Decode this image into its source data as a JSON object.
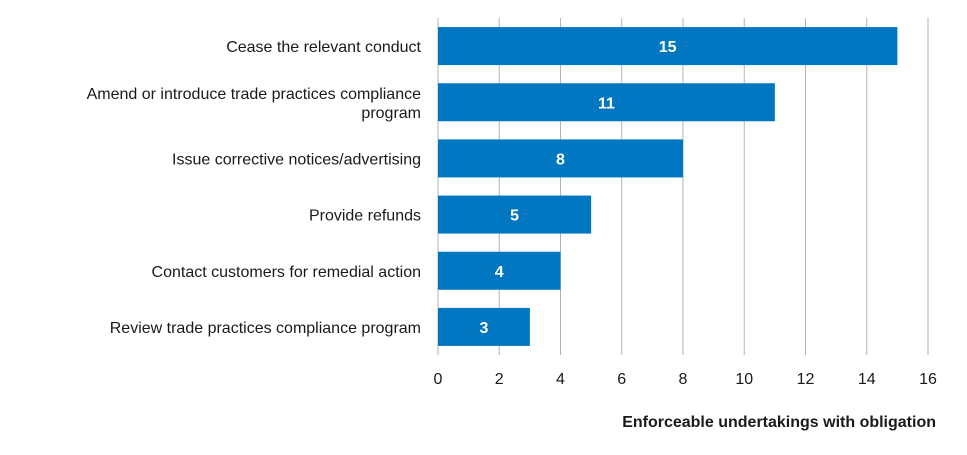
{
  "chart_data": {
    "type": "bar",
    "orientation": "horizontal",
    "categories": [
      [
        "Cease the relevant conduct"
      ],
      [
        "Amend or introduce trade practices compliance",
        "program"
      ],
      [
        "Issue corrective notices/advertising"
      ],
      [
        "Provide refunds"
      ],
      [
        "Contact customers for remedial action"
      ],
      [
        "Review trade practices compliance program"
      ]
    ],
    "values": [
      15,
      11,
      8,
      5,
      4,
      3
    ],
    "data_labels": [
      "15",
      "11",
      "8",
      "5",
      "4",
      "3"
    ],
    "xlabel": "Enforceable undertakings with obligation",
    "xlim": [
      0,
      16
    ],
    "x_ticks": [
      "0",
      "2",
      "4",
      "6",
      "8",
      "10",
      "12",
      "14",
      "16"
    ],
    "grid": "vertical",
    "bar_color": "#0077c0",
    "grid_color": "#b3b3b3"
  }
}
